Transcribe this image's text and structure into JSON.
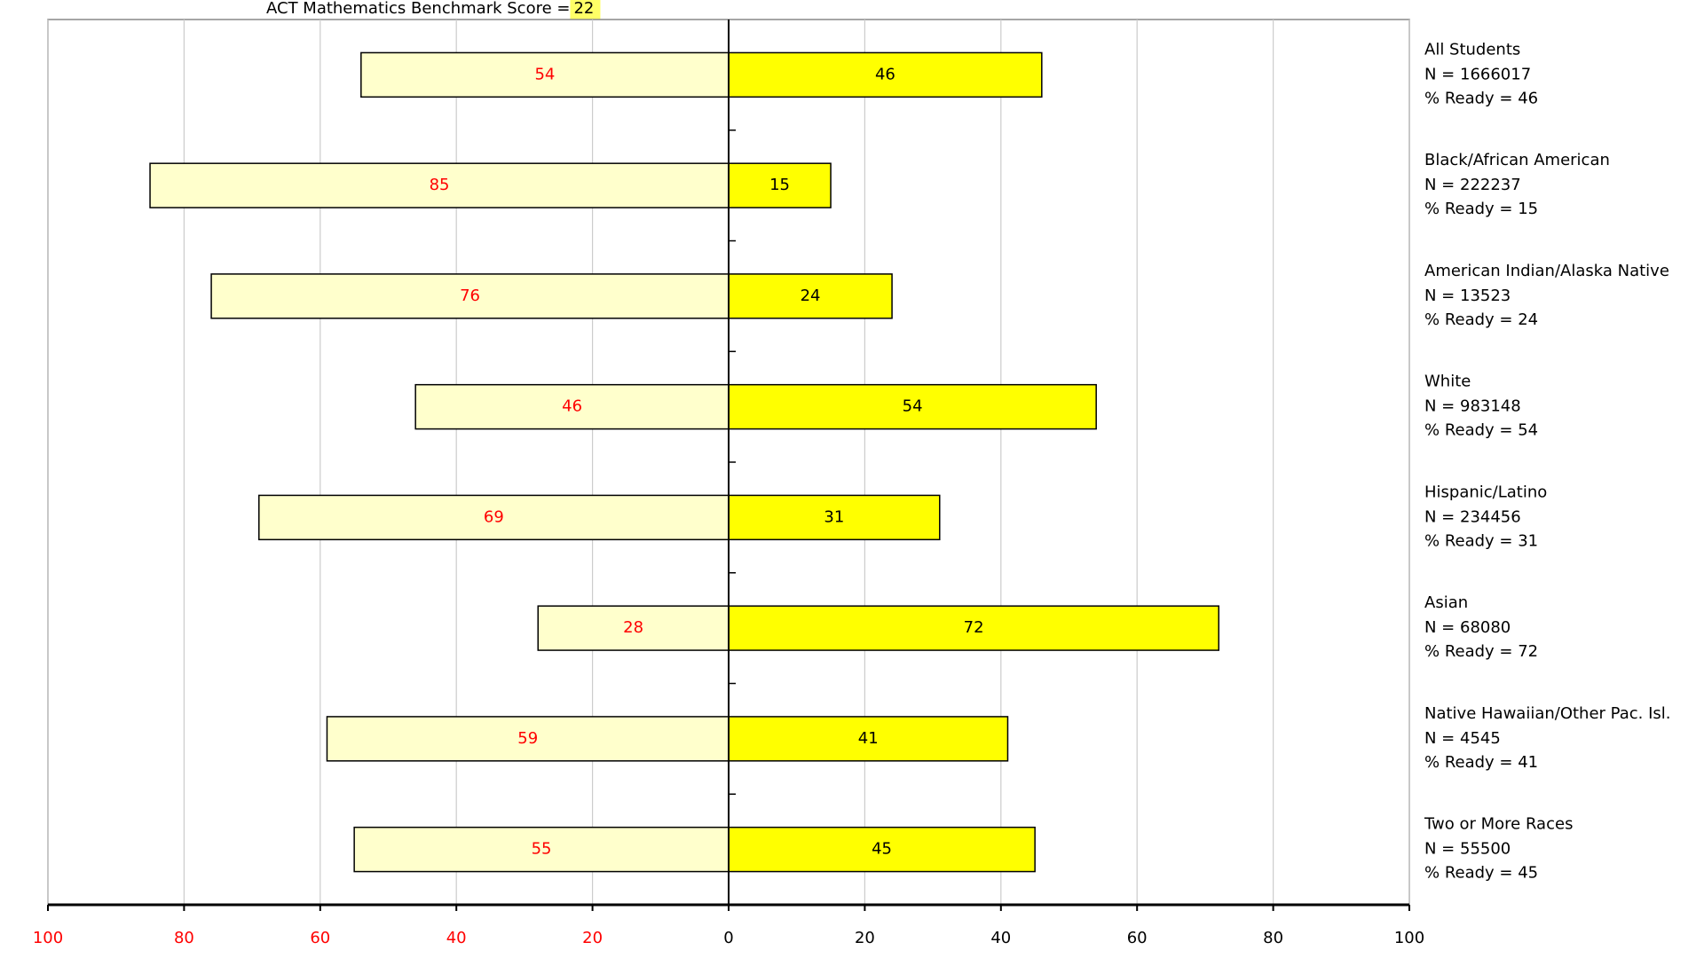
{
  "chart_data": {
    "type": "diverging-bar",
    "title": "ACT Mathematics Benchmark Score = ",
    "benchmark": 22,
    "categories": [
      "All Students",
      "Black/African American",
      "American Indian/Alaska Native",
      "White",
      "Hispanic/Latino",
      "Asian",
      "Native Hawaiian/Other Pac. Isl.",
      "Two or More Races"
    ],
    "n_labels": [
      "N = 1666017",
      "N = 222237",
      "N = 13523",
      "N = 983148",
      "N = 234456",
      "N = 68080",
      "N = 4545",
      "N = 55500"
    ],
    "ready_labels": [
      "% Ready = 46",
      "% Ready = 15",
      "% Ready = 24",
      "% Ready = 54",
      "% Ready = 31",
      "% Ready = 72",
      "% Ready = 41",
      "% Ready = 45"
    ],
    "series": [
      {
        "color": "#ffffcc",
        "label_color": "#ff0000",
        "direction": "left",
        "values": [
          54,
          85,
          76,
          46,
          69,
          28,
          59,
          55
        ]
      },
      {
        "color": "#ffff00",
        "label_color": "#000000",
        "direction": "right",
        "values": [
          46,
          15,
          24,
          54,
          31,
          72,
          41,
          45
        ]
      }
    ],
    "xlim": [
      -100,
      100
    ],
    "xticks": [
      {
        "value": -100,
        "label": "100"
      },
      {
        "value": -80,
        "label": "80"
      },
      {
        "value": -60,
        "label": "60"
      },
      {
        "value": -40,
        "label": "40"
      },
      {
        "value": -20,
        "label": "20"
      },
      0,
      20,
      40,
      60,
      80,
      100
    ],
    "negative_tick_color": "#ff0000",
    "grid": true
  }
}
